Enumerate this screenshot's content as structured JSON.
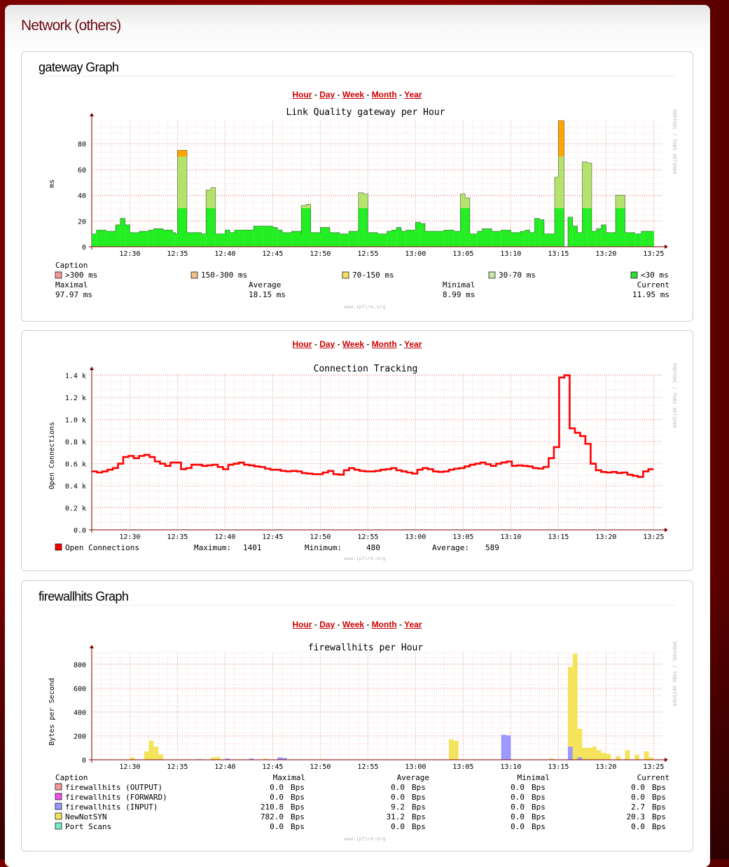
{
  "page": {
    "title": "Network (others)"
  },
  "periods": [
    "Hour",
    "Day",
    "Week",
    "Month",
    "Year"
  ],
  "sections": [
    {
      "title": "gateway Graph"
    },
    {
      "title": ""
    },
    {
      "title": "firewallhits Graph"
    }
  ],
  "footer": "www.ipfire.org",
  "side_text": "RRDTOOL / TOBI OETIKER",
  "colors": {
    "red": "#ff0000",
    "green": "#22ee22",
    "lightgreen": "#b4e36c",
    "orange": "#ffa500",
    "yellow": "#f5e35a",
    "blue": "#9999ff",
    "grid": "#f2b8b8",
    "axis": "#800000"
  },
  "charts": {
    "gateway": {
      "title": "Link Quality gateway per Hour",
      "ylabel": "ms",
      "y_ticks": [
        "0",
        "20",
        "40",
        "60",
        "80"
      ],
      "x_ticks": [
        "12:30",
        "12:35",
        "12:40",
        "12:45",
        "12:50",
        "12:55",
        "13:00",
        "13:05",
        "13:10",
        "13:15",
        "13:20",
        "13:25"
      ],
      "legend": {
        "caption": "Caption",
        "items": [
          {
            "label": ">300 ms",
            "color": "#f49a9a"
          },
          {
            "label": "150-300 ms",
            "color": "#f5c08a"
          },
          {
            "label": "70-150 ms",
            "color": "#f8e060"
          },
          {
            "label": "30-70 ms",
            "color": "#c8e8a8"
          },
          {
            "label": "<30 ms",
            "color": "#33dd33"
          }
        ],
        "stats_labels": [
          "Maximal",
          "Average",
          "Minimal",
          "Current"
        ],
        "stats_values": [
          "97.97 ms",
          "18.15 ms",
          "8.99 ms",
          "11.95 ms"
        ]
      }
    },
    "conntrack": {
      "title": "Connection Tracking",
      "ylabel": "Open Connections",
      "y_ticks": [
        "0.0",
        "0.2 k",
        "0.4 k",
        "0.6 k",
        "0.8 k",
        "1.0 k",
        "1.2 k",
        "1.4 k"
      ],
      "x_ticks": [
        "12:30",
        "12:35",
        "12:40",
        "12:45",
        "12:50",
        "12:55",
        "13:00",
        "13:05",
        "13:10",
        "13:15",
        "13:20",
        "13:25"
      ],
      "legend": {
        "series": "Open Connections",
        "max_label": "Maximum:",
        "max_value": "1401",
        "min_label": "Minimum:",
        "min_value": "480",
        "avg_label": "Average:",
        "avg_value": "589"
      }
    },
    "firewall": {
      "title": "firewallhits per Hour",
      "ylabel": "Bytes per Second",
      "y_ticks": [
        "0",
        "200",
        "400",
        "600",
        "800"
      ],
      "x_ticks": [
        "12:30",
        "12:35",
        "12:40",
        "12:45",
        "12:50",
        "12:55",
        "13:00",
        "13:05",
        "13:10",
        "13:15",
        "13:20",
        "13:25"
      ],
      "legend": {
        "headers": [
          "Caption",
          "Maximal",
          "Average",
          "Minimal",
          "Current"
        ],
        "rows": [
          {
            "name": "firewallhits (OUTPUT)",
            "color": "#f49a9a",
            "max": "0.0",
            "avg": "0.0",
            "min": "0.0",
            "cur": "0.0"
          },
          {
            "name": "firewallhits (FORWARD)",
            "color": "#ee55ee",
            "max": "0.0",
            "avg": "0.0",
            "min": "0.0",
            "cur": "0.0"
          },
          {
            "name": "firewallhits (INPUT)",
            "color": "#9999ff",
            "max": "210.8",
            "avg": "9.2",
            "min": "0.0",
            "cur": "2.7"
          },
          {
            "name": "NewNotSYN",
            "color": "#f5e35a",
            "max": "782.0",
            "avg": "31.2",
            "min": "0.0",
            "cur": "20.3"
          },
          {
            "name": "Port Scans",
            "color": "#77eecc",
            "max": "0.0",
            "avg": "0.0",
            "min": "0.0",
            "cur": "0.0"
          }
        ],
        "unit": "Bps"
      }
    }
  },
  "chart_data": [
    {
      "type": "area",
      "title": "Link Quality gateway per Hour",
      "ylabel": "ms",
      "ylim": [
        0,
        100
      ],
      "x_range": [
        "12:26",
        "13:25"
      ],
      "series_names": [
        "<30 ms",
        "30-70 ms",
        "70-150 ms"
      ],
      "segments_ms": [
        [
          0,
          10
        ],
        [
          0.5,
          13
        ],
        [
          1.5,
          12
        ],
        [
          2.5,
          17
        ],
        [
          3,
          22
        ],
        [
          3.5,
          17
        ],
        [
          4,
          11
        ],
        [
          5,
          12
        ],
        [
          6,
          13
        ],
        [
          6.5,
          14
        ],
        [
          7.5,
          13
        ],
        [
          8.5,
          11
        ],
        [
          8.8,
          10
        ],
        [
          9,
          75
        ],
        [
          10,
          11
        ],
        [
          11.5,
          10
        ],
        [
          11.9,
          10
        ],
        [
          12,
          44
        ],
        [
          12.5,
          46
        ],
        [
          13,
          10
        ],
        [
          14,
          13
        ],
        [
          14.5,
          11
        ],
        [
          15,
          13
        ],
        [
          16,
          13
        ],
        [
          17,
          16
        ],
        [
          18,
          16
        ],
        [
          19,
          15
        ],
        [
          19.5,
          13
        ],
        [
          20,
          11
        ],
        [
          21,
          12
        ],
        [
          22,
          10
        ],
        [
          22,
          32
        ],
        [
          22.5,
          33
        ],
        [
          23,
          11
        ],
        [
          24,
          15
        ],
        [
          25,
          11
        ],
        [
          26,
          10
        ],
        [
          27,
          12
        ],
        [
          28,
          42
        ],
        [
          28.5,
          41
        ],
        [
          29,
          11
        ],
        [
          30,
          10
        ],
        [
          31,
          12
        ],
        [
          31.5,
          13
        ],
        [
          32,
          15
        ],
        [
          32.5,
          12
        ],
        [
          33,
          13
        ],
        [
          34,
          19
        ],
        [
          34.5,
          18
        ],
        [
          35,
          12
        ],
        [
          36,
          12
        ],
        [
          37,
          13
        ],
        [
          38,
          12
        ],
        [
          38.7,
          41
        ],
        [
          39.2,
          38
        ],
        [
          39.7,
          10
        ],
        [
          40.5,
          12
        ],
        [
          41,
          14
        ],
        [
          42,
          12
        ],
        [
          42.5,
          12
        ],
        [
          43,
          13
        ],
        [
          44,
          11
        ],
        [
          45,
          12
        ],
        [
          45.5,
          13
        ],
        [
          46,
          11
        ],
        [
          46.5,
          22
        ],
        [
          47,
          21
        ],
        [
          47.5,
          10
        ],
        [
          48.6,
          54
        ],
        [
          49,
          98
        ],
        [
          49.6,
          0
        ],
        [
          50,
          23
        ],
        [
          50.5,
          16
        ],
        [
          51,
          11
        ],
        [
          51.5,
          66
        ],
        [
          52,
          65
        ],
        [
          52.5,
          12
        ],
        [
          53,
          14
        ],
        [
          53.5,
          17
        ],
        [
          54,
          11
        ],
        [
          55,
          40
        ],
        [
          56,
          11
        ],
        [
          57,
          10
        ],
        [
          57.7,
          12
        ],
        [
          58,
          12
        ],
        [
          59,
          12
        ]
      ]
    },
    {
      "type": "line",
      "title": "Connection Tracking",
      "ylabel": "Open Connections",
      "ylim": [
        0,
        1450
      ],
      "x_range": [
        "12:26",
        "13:25"
      ],
      "series": [
        {
          "name": "Open Connections",
          "values": [
            530,
            520,
            530,
            545,
            560,
            600,
            660,
            670,
            650,
            670,
            680,
            660,
            620,
            600,
            580,
            610,
            610,
            550,
            560,
            590,
            590,
            580,
            585,
            590,
            570,
            550,
            590,
            600,
            610,
            590,
            585,
            575,
            570,
            555,
            545,
            545,
            535,
            530,
            535,
            530,
            515,
            510,
            505,
            505,
            520,
            535,
            505,
            500,
            540,
            560,
            545,
            535,
            530,
            530,
            535,
            545,
            550,
            560,
            540,
            530,
            520,
            510,
            545,
            560,
            550,
            530,
            525,
            530,
            545,
            555,
            560,
            575,
            590,
            600,
            610,
            595,
            580,
            600,
            610,
            620,
            580,
            585,
            580,
            575,
            560,
            555,
            570,
            650,
            750,
            1380,
            1401,
            920,
            880,
            850,
            780,
            600,
            540,
            525,
            520,
            525,
            515,
            520,
            500,
            490,
            480,
            530,
            550
          ]
        }
      ]
    },
    {
      "type": "area",
      "title": "firewallhits per Hour",
      "ylabel": "Bytes per Second",
      "ylim": [
        0,
        900
      ],
      "x_range": [
        "12:26",
        "13:25"
      ],
      "series": [
        {
          "name": "NewNotSYN",
          "values": [
            [
              4,
              20
            ],
            [
              5.5,
              70
            ],
            [
              6,
              160
            ],
            [
              6.5,
              110
            ],
            [
              7,
              45
            ],
            [
              12.5,
              20
            ],
            [
              13,
              25
            ],
            [
              18,
              10
            ],
            [
              24,
              5
            ],
            [
              37.5,
              170
            ],
            [
              38,
              160
            ],
            [
              43,
              10
            ],
            [
              48,
              10
            ],
            [
              50,
              780
            ],
            [
              50.5,
              890
            ],
            [
              51,
              260
            ],
            [
              51.5,
              100
            ],
            [
              52,
              100
            ],
            [
              52.5,
              110
            ],
            [
              53,
              80
            ],
            [
              53.5,
              60
            ],
            [
              54,
              50
            ],
            [
              55,
              30
            ],
            [
              56,
              80
            ],
            [
              57,
              40
            ],
            [
              58,
              70
            ],
            [
              58.5,
              20
            ]
          ]
        },
        {
          "name": "firewallhits (INPUT)",
          "values": [
            [
              11,
              5
            ],
            [
              14,
              10
            ],
            [
              16.5,
              10
            ],
            [
              19.5,
              20
            ],
            [
              20,
              15
            ],
            [
              43,
              210
            ],
            [
              43.5,
              205
            ],
            [
              50,
              110
            ],
            [
              51,
              20
            ]
          ]
        }
      ]
    }
  ]
}
